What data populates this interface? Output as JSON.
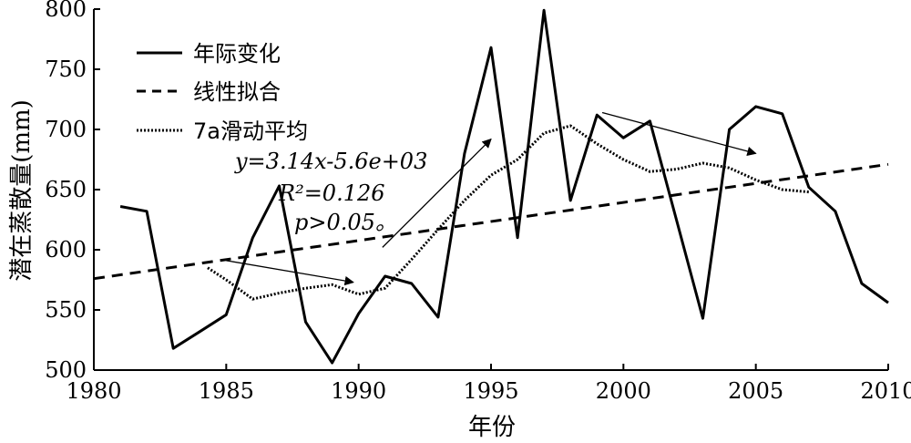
{
  "chart_data": {
    "type": "line",
    "title": "",
    "xlabel": "年份",
    "ylabel": "潜在蒸散量(mm)",
    "xlim": [
      1980,
      2010
    ],
    "ylim": [
      500,
      800
    ],
    "x_ticks": [
      1980,
      1985,
      1990,
      1995,
      2000,
      2005,
      2010
    ],
    "y_ticks": [
      500,
      550,
      600,
      650,
      700,
      750,
      800
    ],
    "x_tick_labels": [
      "1980",
      "1985",
      "1990",
      "1995",
      "2000",
      "2005",
      "2010"
    ],
    "y_tick_labels": [
      "500",
      "550",
      "600",
      "650",
      "700",
      "750",
      "800"
    ],
    "grid": false,
    "legend_position": "top-left",
    "series": [
      {
        "name": "年际变化",
        "style": "solid",
        "x": [
          1981,
          1982,
          1983,
          1984,
          1985,
          1986,
          1987,
          1988,
          1989,
          1990,
          1991,
          1992,
          1993,
          1994,
          1995,
          1996,
          1997,
          1998,
          1999,
          2000,
          2001,
          2002,
          2003,
          2004,
          2005,
          2006,
          2007,
          2008,
          2009,
          2010
        ],
        "values": [
          636,
          632,
          518,
          532,
          546,
          610,
          653,
          540,
          506,
          547,
          578,
          572,
          544,
          680,
          768,
          610,
          799,
          641,
          712,
          693,
          707,
          625,
          543,
          700,
          719,
          713,
          652,
          632,
          572,
          556
        ]
      },
      {
        "name": "线性拟合",
        "style": "dashed",
        "x": [
          1980,
          2010
        ],
        "values": [
          576,
          671
        ]
      },
      {
        "name": "7a滑动平均",
        "style": "dotted",
        "x": [
          1984.3,
          1985,
          1986,
          1987,
          1988,
          1989,
          1990,
          1991,
          1992,
          1993,
          1994,
          1995,
          1996,
          1997,
          1998,
          1999,
          2000,
          2001,
          2002,
          2003,
          2004,
          2005,
          2006,
          2007
        ],
        "values": [
          585,
          575,
          559,
          564,
          568,
          571,
          563,
          568,
          592,
          617,
          641,
          662,
          675,
          697,
          703,
          688,
          675,
          665,
          667,
          672,
          668,
          658,
          650,
          648
        ]
      }
    ],
    "annotations": {
      "equation": "y=3.14x-5.6e+03",
      "r2": "R²=0.126",
      "p": "p>0.05。"
    },
    "arrows": [
      {
        "from": [
          1985,
          591
        ],
        "to": [
          1989.8,
          573
        ]
      },
      {
        "from": [
          1990.9,
          602
        ],
        "to": [
          1995,
          692
        ]
      },
      {
        "from": [
          1999.2,
          714
        ],
        "to": [
          2005,
          680
        ]
      }
    ]
  }
}
